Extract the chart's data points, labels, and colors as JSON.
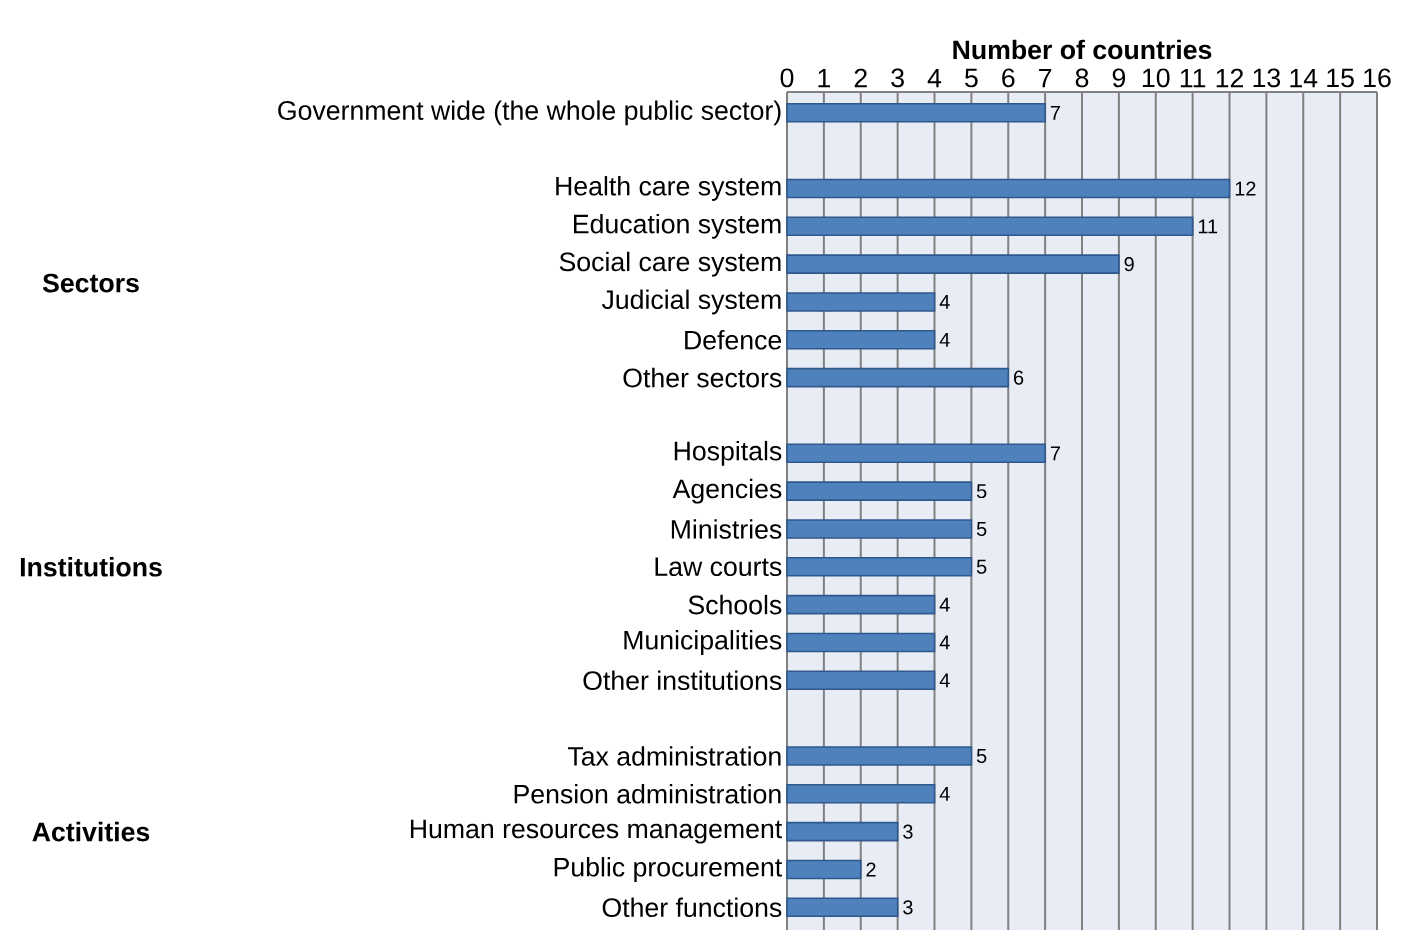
{
  "chart_data": {
    "type": "bar",
    "orientation": "horizontal",
    "xlabel": "Number of countries",
    "categories": [
      "Government wide (the whole public sector)",
      null,
      "Health care system",
      "Education system",
      "Social care system",
      "Judicial system",
      "Defence",
      "Other sectors",
      null,
      "Hospitals",
      "Agencies",
      "Ministries",
      "Law courts",
      "Schools",
      "Municipalities",
      "Other institutions",
      null,
      "Tax administration",
      "Pension administration",
      "Human resources management",
      "Public procurement",
      "Other functions"
    ],
    "values": [
      7,
      null,
      12,
      11,
      9,
      4,
      4,
      6,
      null,
      7,
      5,
      5,
      5,
      4,
      4,
      4,
      null,
      5,
      4,
      3,
      2,
      3
    ],
    "color": "#4f81bd",
    "xlim": [
      0,
      16
    ],
    "xticks": [
      0,
      1,
      2,
      3,
      4,
      5,
      6,
      7,
      8,
      9,
      10,
      11,
      12,
      13,
      14,
      15,
      16
    ],
    "grid": "x",
    "data_labels": true,
    "annotations": [
      "Sectors",
      "Institutions",
      "Activities"
    ]
  }
}
